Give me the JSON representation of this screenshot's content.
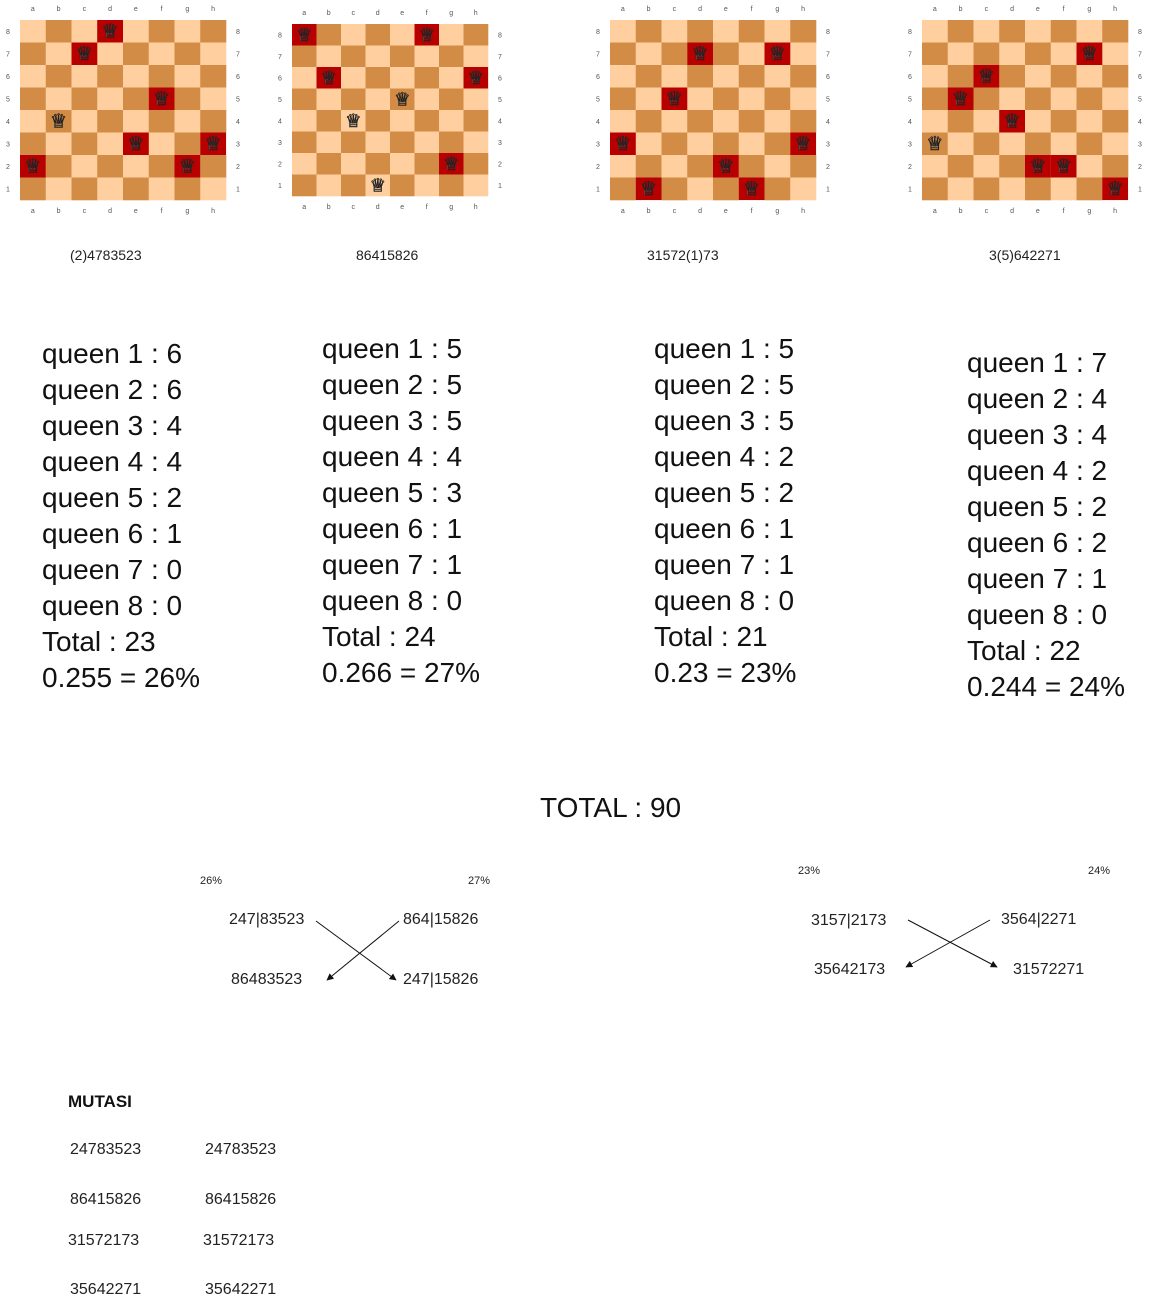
{
  "files": [
    "a",
    "b",
    "c",
    "d",
    "e",
    "f",
    "g",
    "h"
  ],
  "ranks": [
    "8",
    "7",
    "6",
    "5",
    "4",
    "3",
    "2",
    "1"
  ],
  "colors": {
    "light": "#ffcf9f",
    "dark": "#d28c45",
    "attack": "#b80000"
  },
  "queen_glyph": "♕",
  "boards": [
    {
      "caption": "(2)4783523",
      "queens": [
        {
          "file": 0,
          "rank": 2,
          "hl": true
        },
        {
          "file": 1,
          "rank": 4,
          "hl": false
        },
        {
          "file": 2,
          "rank": 7,
          "hl": true
        },
        {
          "file": 3,
          "rank": 8,
          "hl": true
        },
        {
          "file": 4,
          "rank": 3,
          "hl": true
        },
        {
          "file": 5,
          "rank": 5,
          "hl": true
        },
        {
          "file": 6,
          "rank": 2,
          "hl": true
        },
        {
          "file": 7,
          "rank": 3,
          "hl": true
        }
      ]
    },
    {
      "caption": "86415826",
      "queens": [
        {
          "file": 0,
          "rank": 8,
          "hl": true
        },
        {
          "file": 1,
          "rank": 6,
          "hl": true
        },
        {
          "file": 2,
          "rank": 4,
          "hl": false
        },
        {
          "file": 3,
          "rank": 1,
          "hl": false
        },
        {
          "file": 4,
          "rank": 5,
          "hl": false
        },
        {
          "file": 5,
          "rank": 8,
          "hl": true
        },
        {
          "file": 6,
          "rank": 2,
          "hl": true
        },
        {
          "file": 7,
          "rank": 6,
          "hl": true
        }
      ]
    },
    {
      "caption": "31572(1)73",
      "queens": [
        {
          "file": 0,
          "rank": 3,
          "hl": true
        },
        {
          "file": 1,
          "rank": 1,
          "hl": true
        },
        {
          "file": 2,
          "rank": 5,
          "hl": true
        },
        {
          "file": 3,
          "rank": 7,
          "hl": true
        },
        {
          "file": 4,
          "rank": 2,
          "hl": true
        },
        {
          "file": 5,
          "rank": 1,
          "hl": true
        },
        {
          "file": 6,
          "rank": 7,
          "hl": true
        },
        {
          "file": 7,
          "rank": 3,
          "hl": true
        }
      ]
    },
    {
      "caption": "3(5)642271",
      "queens": [
        {
          "file": 0,
          "rank": 3,
          "hl": false
        },
        {
          "file": 1,
          "rank": 5,
          "hl": true
        },
        {
          "file": 2,
          "rank": 6,
          "hl": true
        },
        {
          "file": 3,
          "rank": 4,
          "hl": true
        },
        {
          "file": 4,
          "rank": 2,
          "hl": true
        },
        {
          "file": 5,
          "rank": 2,
          "hl": true
        },
        {
          "file": 6,
          "rank": 7,
          "hl": true
        },
        {
          "file": 7,
          "rank": 1,
          "hl": true
        }
      ]
    }
  ],
  "stats": [
    {
      "lines": [
        "queen 1 : 6",
        "queen 2 : 6",
        "queen 3 : 4",
        "queen 4 : 4",
        "queen 5 : 2",
        "queen 6 : 1",
        "queen 7 : 0",
        "queen 8 : 0"
      ],
      "total": "Total : 23",
      "ratio": "0.255 = 26%"
    },
    {
      "lines": [
        "queen 1 : 5",
        "queen 2 : 5",
        "queen 3 : 5",
        "queen 4 : 4",
        "queen 5 : 3",
        "queen 6 : 1",
        "queen 7 : 1",
        "queen 8 : 0"
      ],
      "total": "Total : 24",
      "ratio": "0.266 = 27%"
    },
    {
      "lines": [
        "queen 1 : 5",
        "queen 2 : 5",
        "queen 3 : 5",
        "queen 4 : 2",
        "queen 5 : 2",
        "queen 6 : 1",
        "queen 7 : 1",
        "queen 8 : 0"
      ],
      "total": "Total : 21",
      "ratio": "0.23 = 23%"
    },
    {
      "lines": [
        "queen 1 : 7",
        "queen 2 : 4",
        "queen 3 : 4",
        "queen 4 : 2",
        "queen 5 : 2",
        "queen 6 : 2",
        "queen 7 : 1",
        "queen 8 : 0"
      ],
      "total": "Total : 22",
      "ratio": "0.244 = 24%"
    }
  ],
  "grand_total": "TOTAL : 90",
  "crossovers": [
    {
      "pct_left": "26%",
      "pct_right": "27%",
      "parent_left": "247|83523",
      "parent_right": "864|15826",
      "child_left": "86483523",
      "child_right": "247|15826"
    },
    {
      "pct_left": "23%",
      "pct_right": "24%",
      "parent_left": "3157|2173",
      "parent_right": "3564|2271",
      "child_left": "35642173",
      "child_right": "31572271"
    }
  ],
  "mutation": {
    "title": "MUTASI",
    "rows": [
      [
        "24783523",
        "24783523"
      ],
      [
        "86415826",
        "86415826"
      ],
      [
        "31572173",
        "31572173"
      ],
      [
        "35642271",
        "35642271"
      ]
    ]
  }
}
